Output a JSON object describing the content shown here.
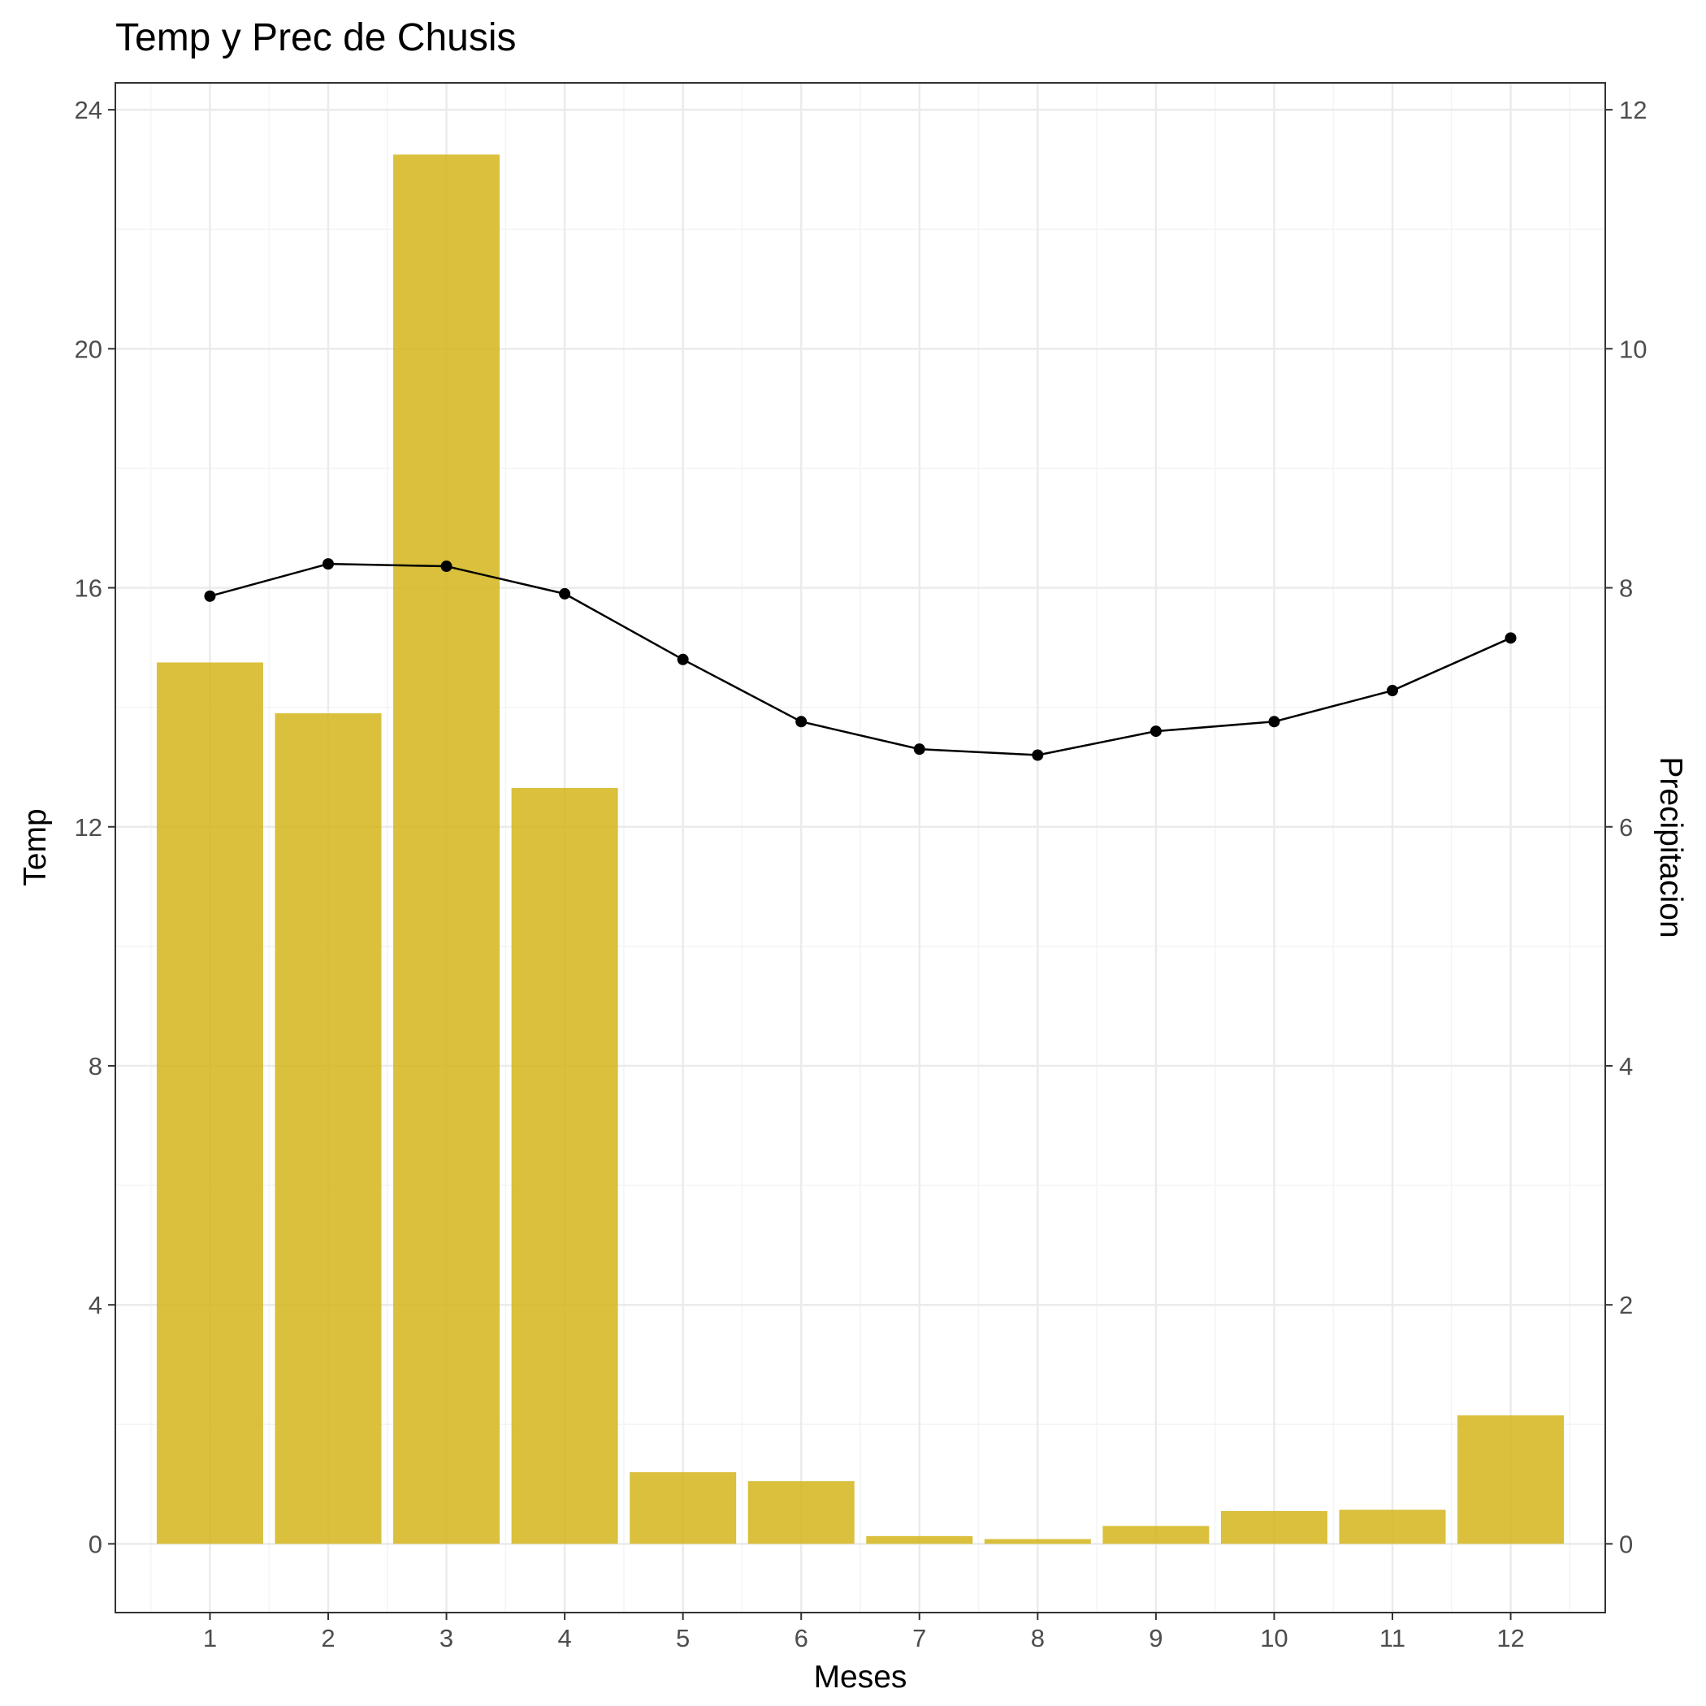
{
  "chart_data": {
    "type": "bar",
    "title": "Temp y Prec de Chusis",
    "xlabel": "Meses",
    "ylabel": "Temp",
    "y2label": "Precipitacion",
    "categories": [
      "1",
      "2",
      "3",
      "4",
      "5",
      "6",
      "7",
      "8",
      "9",
      "10",
      "11",
      "12"
    ],
    "ylim": [
      -1.15,
      24.45
    ],
    "y2lim": [
      -0.575,
      12.225
    ],
    "yticks": [
      "0",
      "4",
      "8",
      "12",
      "16",
      "20",
      "24"
    ],
    "y2ticks": [
      "0",
      "2",
      "4",
      "6",
      "8",
      "10",
      "12"
    ],
    "grid": true,
    "legend": "none",
    "series": [
      {
        "type": "bar",
        "axis": "left",
        "values": [
          14.75,
          13.9,
          23.25,
          12.65,
          1.2,
          1.05,
          0.13,
          0.08,
          0.3,
          0.55,
          0.57,
          2.15
        ]
      },
      {
        "type": "line",
        "axis": "right",
        "values": [
          7.93,
          8.2,
          8.18,
          7.95,
          7.4,
          6.88,
          6.65,
          6.6,
          6.8,
          6.88,
          7.14,
          7.58
        ]
      }
    ],
    "colors": {
      "bar": "#d4b51a",
      "line": "#000000",
      "grid_major": "#ebebeb",
      "grid_minor": "#f4f4f4",
      "panel_border": "#333333"
    }
  }
}
